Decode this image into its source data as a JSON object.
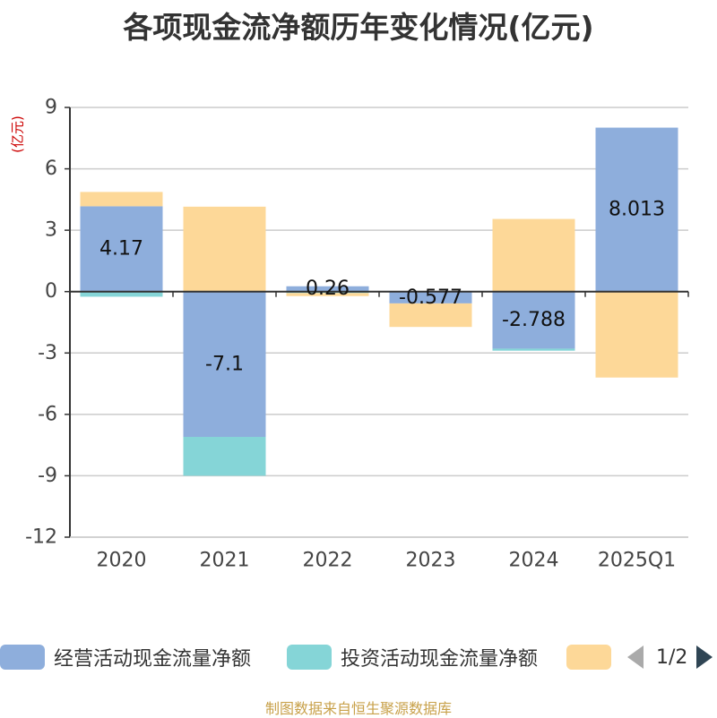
{
  "title": "各项现金流净额历年变化情况(亿元)",
  "unit_label": "(亿元)",
  "source": "制图数据来自恒生聚源数据库",
  "pager": {
    "text": "1/2"
  },
  "chart_data": {
    "type": "bar",
    "stacked": true,
    "categories": [
      "2020",
      "2021",
      "2022",
      "2023",
      "2024",
      "2025Q1"
    ],
    "ylim": [
      -12,
      9
    ],
    "yticks": [
      9,
      6,
      3,
      0,
      -3,
      -6,
      -9,
      -12
    ],
    "grid": true,
    "legend_position": "bottom",
    "series": [
      {
        "name": "经营活动现金流量净额",
        "color": "#8eaedc",
        "values": [
          4.17,
          -7.1,
          0.26,
          -0.577,
          -2.788,
          8.013
        ],
        "labels": [
          "4.17",
          "-7.1",
          "0.26",
          "-0.577",
          "-2.788",
          "8.013"
        ]
      },
      {
        "name": "投资活动现金流量净额",
        "color": "#85d5d7",
        "values": [
          -0.25,
          -1.9,
          -0.07,
          0.0,
          -0.1,
          0.0
        ]
      },
      {
        "name": "",
        "color": "#fdd898",
        "values": [
          0.7,
          4.15,
          -0.15,
          -1.15,
          3.55,
          -4.2
        ]
      }
    ]
  }
}
